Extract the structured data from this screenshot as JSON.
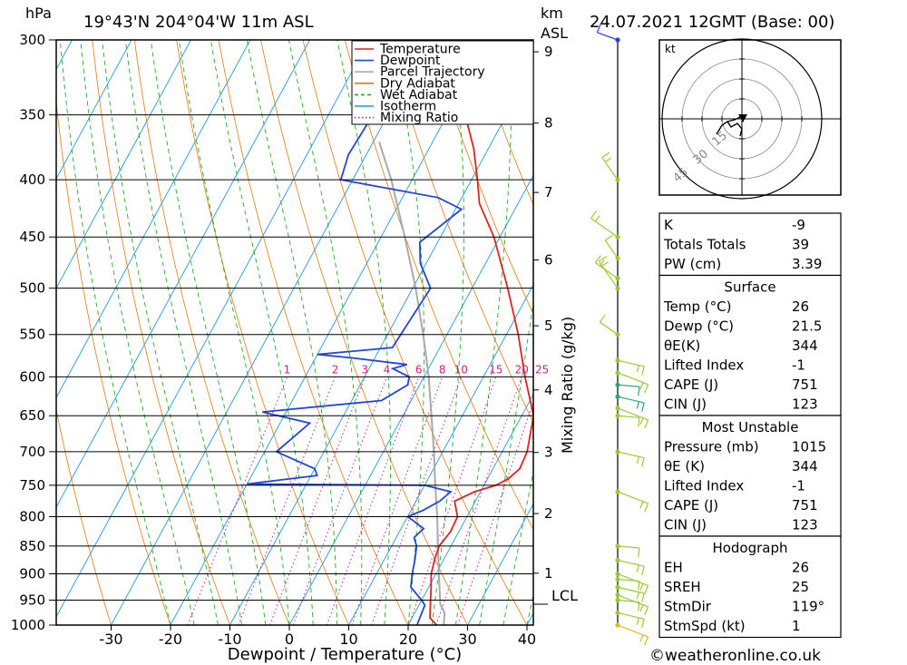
{
  "header": {
    "hpa_unit": "hPa",
    "location": "19°43'N  204°04'W  11m  ASL",
    "km_unit": "km",
    "asl": "ASL",
    "datetime": "24.07.2021  12GMT  (Base: 00)"
  },
  "chart_data": {
    "type": "skew-t",
    "xlabel": "Dewpoint / Temperature (°C)",
    "ylabel_right": "Mixing Ratio (g/kg)",
    "x_ticks": [
      "-30",
      "-20",
      "-10",
      "0",
      "10",
      "20",
      "30",
      "40"
    ],
    "x_tick_values": [
      -30,
      -20,
      -10,
      0,
      10,
      20,
      30,
      40
    ],
    "pressure_levels": [
      300,
      350,
      400,
      450,
      500,
      550,
      600,
      650,
      700,
      750,
      800,
      850,
      900,
      950,
      1000
    ],
    "height_km_ticks": [
      "1",
      "2",
      "3",
      "4",
      "5",
      "6",
      "7",
      "8",
      "9"
    ],
    "lcl_label": "LCL",
    "mixing_ratio_labels": [
      "1",
      "2",
      "3",
      "4",
      "6",
      "8",
      "10",
      "15",
      "20",
      "25"
    ],
    "legend": [
      {
        "name": "Temperature",
        "color": "#dd2222",
        "style": "solid"
      },
      {
        "name": "Dewpoint",
        "color": "#2244dd",
        "style": "solid"
      },
      {
        "name": "Parcel Trajectory",
        "color": "#aaaaaa",
        "style": "solid"
      },
      {
        "name": "Dry Adiabat",
        "color": "#e07a10",
        "style": "solid"
      },
      {
        "name": "Wet Adiabat",
        "color": "#22aa22",
        "style": "dashed"
      },
      {
        "name": "Isotherm",
        "color": "#2299dd",
        "style": "solid"
      },
      {
        "name": "Mixing Ratio",
        "color": "#cc2288",
        "style": "dotted"
      }
    ],
    "temperature": [
      [
        1000,
        24.8
      ],
      [
        985,
        23
      ],
      [
        950,
        21.5
      ],
      [
        925,
        20.4
      ],
      [
        900,
        19.2
      ],
      [
        875,
        18.5
      ],
      [
        850,
        18
      ],
      [
        825,
        18.6
      ],
      [
        800,
        18.4
      ],
      [
        775,
        16.5
      ],
      [
        760,
        19
      ],
      [
        750,
        22
      ],
      [
        740,
        23.5
      ],
      [
        725,
        24.5
      ],
      [
        700,
        24.2
      ],
      [
        650,
        22
      ],
      [
        600,
        17
      ],
      [
        550,
        12
      ],
      [
        500,
        6
      ],
      [
        450,
        -1
      ],
      [
        420,
        -6.5
      ],
      [
        400,
        -9
      ],
      [
        375,
        -12.5
      ],
      [
        350,
        -17
      ],
      [
        325,
        -22
      ],
      [
        300,
        -28
      ]
    ],
    "dewpoint": [
      [
        1000,
        21.5
      ],
      [
        985,
        21.3
      ],
      [
        960,
        21
      ],
      [
        950,
        20
      ],
      [
        925,
        17
      ],
      [
        900,
        16
      ],
      [
        875,
        15.2
      ],
      [
        850,
        14.2
      ],
      [
        835,
        13
      ],
      [
        820,
        13.8
      ],
      [
        805,
        11
      ],
      [
        800,
        10
      ],
      [
        790,
        12
      ],
      [
        775,
        14
      ],
      [
        760,
        15
      ],
      [
        750,
        10
      ],
      [
        748,
        -20
      ],
      [
        735,
        -9
      ],
      [
        725,
        -10
      ],
      [
        700,
        -18
      ],
      [
        660,
        -15
      ],
      [
        645,
        -24
      ],
      [
        630,
        -5
      ],
      [
        610,
        -2
      ],
      [
        600,
        -2.5
      ],
      [
        590,
        -6
      ],
      [
        585,
        -4
      ],
      [
        577,
        -14
      ],
      [
        573,
        -20
      ],
      [
        565,
        -8
      ],
      [
        500,
        -7
      ],
      [
        475,
        -11
      ],
      [
        455,
        -13
      ],
      [
        425,
        -9
      ],
      [
        415,
        -14
      ],
      [
        400,
        -32
      ],
      [
        380,
        -33
      ],
      [
        320,
        -32
      ],
      [
        310,
        -35
      ]
    ],
    "parcel": [
      [
        1000,
        26
      ],
      [
        975,
        25
      ],
      [
        958,
        23.5
      ],
      [
        900,
        20.5
      ],
      [
        850,
        17.8
      ],
      [
        800,
        15
      ],
      [
        750,
        11.8
      ],
      [
        700,
        8.5
      ],
      [
        650,
        4.8
      ],
      [
        600,
        0.8
      ],
      [
        550,
        -4
      ],
      [
        500,
        -9.5
      ],
      [
        450,
        -16
      ],
      [
        400,
        -23.5
      ],
      [
        370,
        -29
      ]
    ],
    "indices": [
      {
        "label": "K",
        "value": "-9"
      },
      {
        "label": "Totals Totals",
        "value": "39"
      },
      {
        "label": "PW (cm)",
        "value": "3.39"
      }
    ],
    "surface": {
      "title": "Surface",
      "rows": [
        {
          "label": "Temp (°C)",
          "value": "26"
        },
        {
          "label": "Dewp (°C)",
          "value": "21.5"
        },
        {
          "label": "θE(K)",
          "value": "344"
        },
        {
          "label": "Lifted Index",
          "value": "-1"
        },
        {
          "label": "CAPE (J)",
          "value": "751"
        },
        {
          "label": "CIN (J)",
          "value": "123"
        }
      ]
    },
    "most_unstable": {
      "title": "Most Unstable",
      "rows": [
        {
          "label": "Pressure (mb)",
          "value": "1015"
        },
        {
          "label": "θE (K)",
          "value": "344"
        },
        {
          "label": "Lifted Index",
          "value": "-1"
        },
        {
          "label": "CAPE (J)",
          "value": "751"
        },
        {
          "label": "CIN (J)",
          "value": "123"
        }
      ]
    },
    "hodograph_table": {
      "title": "Hodograph",
      "rows": [
        {
          "label": "EH",
          "value": "26"
        },
        {
          "label": "SREH",
          "value": "25"
        },
        {
          "label": "StmDir",
          "value": "119°"
        },
        {
          "label": "StmSpd (kt)",
          "value": "1"
        }
      ]
    },
    "hodograph": {
      "unit": "kt",
      "ring_labels": [
        "15",
        "30",
        "45"
      ]
    },
    "wind_levels": [
      300,
      400,
      450,
      470,
      490,
      500,
      550,
      580,
      595,
      610,
      625,
      640,
      650,
      700,
      760,
      850,
      875,
      900,
      910,
      925,
      940,
      950,
      975,
      1000
    ]
  },
  "footer": {
    "copyright": "©weatheronline.co.uk"
  }
}
